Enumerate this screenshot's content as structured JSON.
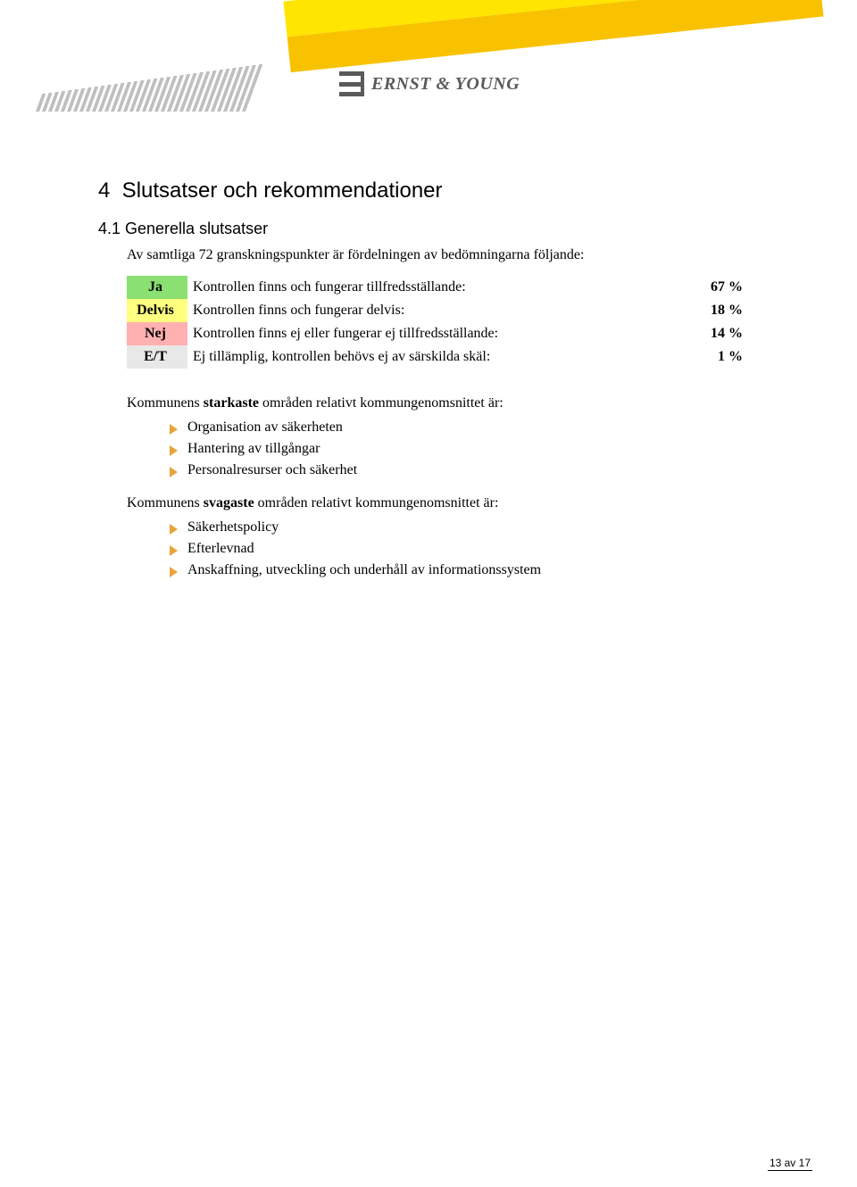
{
  "logo_text": "ERNST & YOUNG",
  "section_heading": "4  Slutsatser och rekommendationer",
  "subsection_heading": "4.1 Generella slutsatser",
  "intro_text": "Av samtliga 72 granskningspunkter är fördelningen av bedömningarna följande:",
  "table": {
    "rows": [
      {
        "label": "Ja",
        "cell_bg": "#8ae070",
        "desc": "Kontrollen finns och fungerar tillfredsställande:",
        "value": "67 %"
      },
      {
        "label": "Delvis",
        "cell_bg": "#ffff80",
        "desc": "Kontrollen finns och fungerar delvis:",
        "value": "18 %"
      },
      {
        "label": "Nej",
        "cell_bg": "#ffb0b0",
        "desc": "Kontrollen finns ej eller fungerar ej tillfredsställande:",
        "value": "14 %"
      },
      {
        "label": "E/T",
        "cell_bg": "#e8e8e8",
        "desc": "Ej tillämplig, kontrollen behövs ej av särskilda skäl:",
        "value": "1 %"
      }
    ]
  },
  "strong_intro_pre": "Kommunens ",
  "strong_intro_bold": "starkaste",
  "strong_intro_post": " områden relativt kommungenomsnittet är:",
  "strong_items": [
    "Organisation av säkerheten",
    "Hantering av tillgångar",
    "Personalresurser och säkerhet"
  ],
  "weak_intro_pre": "Kommunens ",
  "weak_intro_bold": "svagaste",
  "weak_intro_post": " områden relativt kommungenomsnittet är:",
  "weak_items": [
    "Säkerhetspolicy",
    "Efterlevnad",
    "Anskaffning, utveckling och underhåll av informationssystem"
  ],
  "page_number": "13 av 17",
  "colors": {
    "beam_top": "#ffe500",
    "beam_bottom": "#f9c200",
    "barcode": "#bfbfbf",
    "arrow": "#e8a33d"
  }
}
